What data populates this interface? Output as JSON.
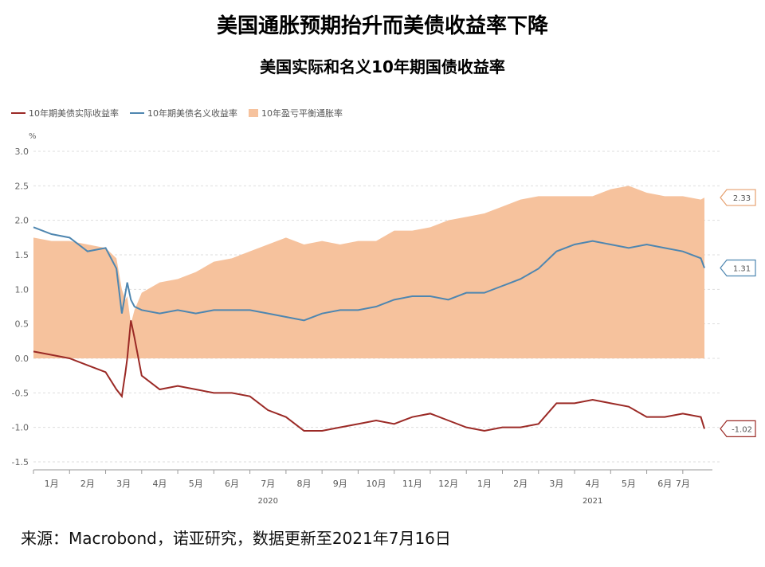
{
  "title": "美国通胀预期抬升而美债收益率下降",
  "subtitle": "美国实际和名义10年期国债收益率",
  "source": "来源：Macrobond，诺亚研究，数据更新至2021年7月16日",
  "colors": {
    "real": "#9b2a26",
    "nominal": "#4e86b0",
    "breakeven": "#f6c29d",
    "grid": "#dddddd"
  },
  "chart_data": {
    "type": "line",
    "ylabel": "%",
    "ylim": [
      -1.5,
      3.0
    ],
    "yticks": [
      "3.0",
      "2.5",
      "2.0",
      "1.5",
      "1.0",
      "0.5",
      "0.0",
      "-0.5",
      "-1.0",
      "-1.5"
    ],
    "x_tick_labels": [
      "1月",
      "2月",
      "3月",
      "4月",
      "5月",
      "6月",
      "7月",
      "8月",
      "9月",
      "10月",
      "11月",
      "12月",
      "1月",
      "2月",
      "3月",
      "4月",
      "5月",
      "6月",
      "7月"
    ],
    "year_labels": [
      "2020",
      "2021"
    ],
    "x_months": [
      0,
      0.5,
      1,
      1.5,
      2,
      2.3,
      2.45,
      2.55,
      2.6,
      2.7,
      2.8,
      3,
      3.5,
      4,
      4.5,
      5,
      5.5,
      6,
      6.5,
      7,
      7.5,
      8,
      8.5,
      9,
      9.5,
      10,
      10.5,
      11,
      11.5,
      12,
      12.5,
      13,
      13.5,
      14,
      14.5,
      15,
      15.5,
      16,
      16.5,
      17,
      17.5,
      18,
      18.5,
      18.6
    ],
    "series": [
      {
        "name": "10年期美债实际收益率",
        "kind": "line",
        "values": [
          0.1,
          0.05,
          0.0,
          -0.1,
          -0.2,
          -0.45,
          -0.55,
          -0.2,
          0.0,
          0.55,
          0.3,
          -0.25,
          -0.45,
          -0.4,
          -0.45,
          -0.5,
          -0.5,
          -0.55,
          -0.75,
          -0.85,
          -1.05,
          -1.05,
          -1.0,
          -0.95,
          -0.9,
          -0.95,
          -0.85,
          -0.8,
          -0.9,
          -1.0,
          -1.05,
          -1.0,
          -1.0,
          -0.95,
          -0.65,
          -0.65,
          -0.6,
          -0.65,
          -0.7,
          -0.85,
          -0.85,
          -0.8,
          -0.85,
          -1.02
        ]
      },
      {
        "name": "10年期美债名义收益率",
        "kind": "line",
        "values": [
          1.9,
          1.8,
          1.75,
          1.55,
          1.6,
          1.3,
          0.65,
          0.95,
          1.1,
          0.85,
          0.75,
          0.7,
          0.65,
          0.7,
          0.65,
          0.7,
          0.7,
          0.7,
          0.65,
          0.6,
          0.55,
          0.65,
          0.7,
          0.7,
          0.75,
          0.85,
          0.9,
          0.9,
          0.85,
          0.95,
          0.95,
          1.05,
          1.15,
          1.3,
          1.55,
          1.65,
          1.7,
          1.65,
          1.6,
          1.65,
          1.6,
          1.55,
          1.45,
          1.31
        ]
      },
      {
        "name": "10年盈亏平衡通胀率",
        "kind": "area",
        "values": [
          1.75,
          1.7,
          1.7,
          1.65,
          1.6,
          1.45,
          1.0,
          0.85,
          0.9,
          0.5,
          0.7,
          0.95,
          1.1,
          1.15,
          1.25,
          1.4,
          1.45,
          1.55,
          1.65,
          1.75,
          1.65,
          1.7,
          1.65,
          1.7,
          1.7,
          1.85,
          1.85,
          1.9,
          2.0,
          2.05,
          2.1,
          2.2,
          2.3,
          2.35,
          2.35,
          2.35,
          2.35,
          2.45,
          2.5,
          2.4,
          2.35,
          2.35,
          2.3,
          2.33
        ]
      }
    ],
    "end_labels": [
      {
        "series": 2,
        "value": 2.33,
        "text": "2.33"
      },
      {
        "series": 1,
        "value": 1.31,
        "text": "1.31"
      },
      {
        "series": 0,
        "value": -1.02,
        "text": "-1.02"
      }
    ]
  }
}
